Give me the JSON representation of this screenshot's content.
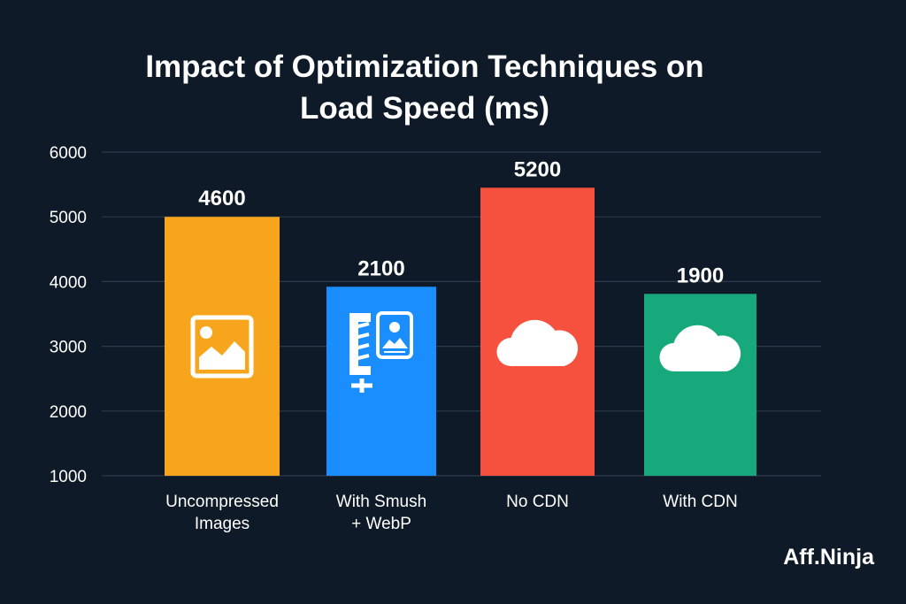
{
  "chart_data": {
    "type": "bar",
    "title_lines": [
      "Impact of Optimization Techniques on",
      "Load Speed (ms)"
    ],
    "categories": [
      [
        "Uncompressed",
        "Images"
      ],
      [
        "With Smush",
        "+ WebP"
      ],
      [
        "No CDN"
      ],
      [
        "With CDN"
      ]
    ],
    "values": [
      4600,
      2100,
      5200,
      1900
    ],
    "bar_top_on_axis": [
      5000,
      3920,
      5450,
      3810
    ],
    "colors": [
      "#f7a51d",
      "#1a8dff",
      "#f6513f",
      "#17a97b"
    ],
    "icons": [
      "image-icon",
      "compress-image-icon",
      "cloud-icon",
      "cloud-icon"
    ],
    "ylim": [
      1000,
      6000
    ],
    "yticks": [
      1000,
      2000,
      3000,
      4000,
      5000,
      6000
    ],
    "grid": true,
    "xlabel": "",
    "ylabel": ""
  },
  "brand": "Aff.Ninja"
}
